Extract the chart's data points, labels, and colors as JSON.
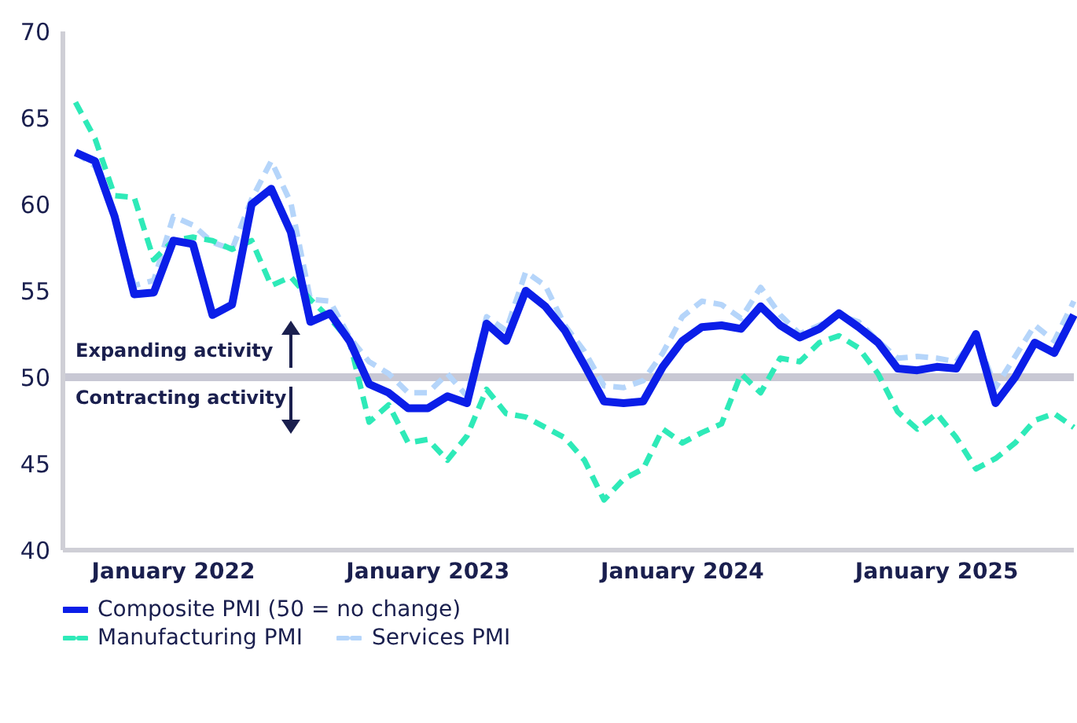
{
  "chart_data": {
    "type": "line",
    "categories": [
      null,
      null,
      null,
      null,
      null,
      "January 2022",
      null,
      null,
      null,
      null,
      null,
      null,
      null,
      null,
      null,
      null,
      null,
      null,
      "January 2023",
      null,
      null,
      null,
      null,
      null,
      null,
      null,
      null,
      null,
      null,
      null,
      null,
      "January 2024",
      null,
      null,
      null,
      null,
      null,
      null,
      null,
      null,
      null,
      null,
      null,
      null,
      "January 2025",
      null,
      null,
      null,
      null,
      null,
      null,
      null
    ],
    "series": [
      {
        "name": "Composite PMI (50 = no change)",
        "color": "#0b1ee8",
        "line_style": "solid",
        "values": [
          63.0,
          62.5,
          59.3,
          54.8,
          54.9,
          57.9,
          57.7,
          53.6,
          54.2,
          60.0,
          60.9,
          58.4,
          53.2,
          53.7,
          52.1,
          49.6,
          49.1,
          48.2,
          48.2,
          48.9,
          48.5,
          53.1,
          52.1,
          55.0,
          54.1,
          52.7,
          50.7,
          48.6,
          48.5,
          48.6,
          50.6,
          52.1,
          52.9,
          53.0,
          52.8,
          54.1,
          53.0,
          52.3,
          52.8,
          53.7,
          52.9,
          52.0,
          50.5,
          50.4,
          50.6,
          50.5,
          52.5,
          48.5,
          50.0,
          52.0,
          51.4,
          53.6
        ]
      },
      {
        "name": "Manufacturing PMI",
        "color": "#2eeab8",
        "line_style": "dashed",
        "values": [
          65.9,
          63.8,
          60.5,
          60.4,
          56.8,
          57.9,
          58.1,
          57.9,
          57.4,
          57.9,
          55.3,
          55.8,
          54.5,
          53.4,
          52.1,
          47.4,
          48.4,
          46.2,
          46.4,
          45.2,
          46.6,
          49.3,
          47.9,
          47.7,
          47.1,
          46.5,
          45.2,
          42.9,
          44.1,
          44.7,
          47.0,
          46.2,
          46.8,
          47.3,
          50.2,
          49.1,
          51.1,
          50.9,
          52.0,
          52.4,
          51.7,
          50.2,
          48.0,
          47.0,
          47.9,
          46.5,
          44.7,
          45.3,
          46.2,
          47.5,
          47.9,
          47.1
        ]
      },
      {
        "name": "Services PMI",
        "color": "#b5d5fa",
        "line_style": "dashed",
        "values": [
          63.0,
          62.2,
          59.3,
          55.3,
          55.6,
          59.3,
          58.8,
          57.8,
          57.4,
          60.3,
          62.5,
          60.1,
          54.5,
          54.4,
          52.3,
          50.9,
          50.2,
          49.1,
          49.1,
          50.2,
          48.9,
          53.5,
          52.7,
          56.1,
          55.3,
          53.0,
          51.5,
          49.5,
          49.4,
          49.8,
          51.4,
          53.5,
          54.4,
          54.2,
          53.4,
          55.2,
          53.6,
          52.5,
          53.0,
          53.6,
          53.2,
          52.1,
          51.1,
          51.2,
          51.1,
          50.9,
          52.4,
          49.4,
          51.2,
          53.0,
          52.1,
          54.4
        ]
      }
    ],
    "ylim": [
      40,
      70
    ],
    "yticks": [
      40,
      45,
      50,
      55,
      60,
      65,
      70
    ],
    "ref_lines": [
      {
        "axis": "y",
        "value": 50,
        "color": "#c8c8d4"
      }
    ],
    "annotations": [
      "Expanding activity",
      "Contracting activity"
    ],
    "grid": false,
    "legend": "bottom",
    "marker": "none"
  }
}
